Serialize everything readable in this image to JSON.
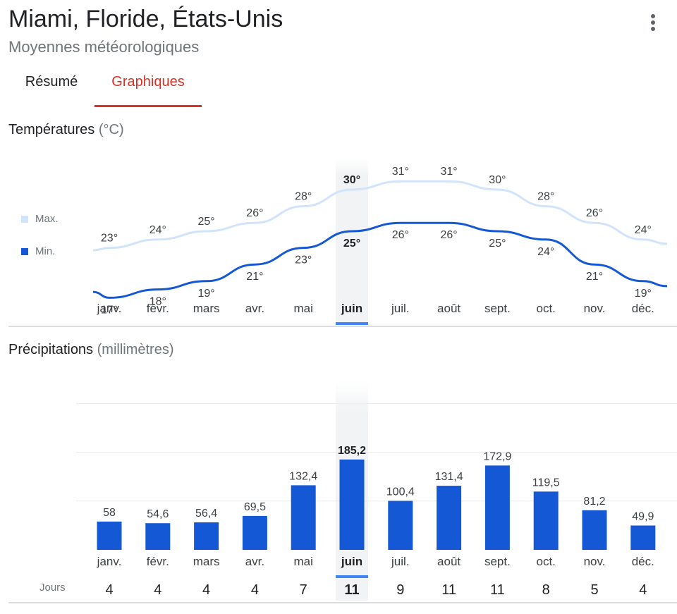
{
  "header": {
    "title": "Miami, Floride, États-Unis",
    "subtitle": "Moyennes météorologiques"
  },
  "menu": {
    "icon": "more-vert-icon"
  },
  "tabs": [
    {
      "label": "Résumé",
      "active": false
    },
    {
      "label": "Graphiques",
      "active": true
    }
  ],
  "colors": {
    "accent_red": "#d93025",
    "min_line": "#1558d6",
    "max_line": "#d2e3fc",
    "bar": "#1558d6",
    "highlight_band": "#f1f3f4",
    "highlight_marker": "#4285f4"
  },
  "selected_month_index": 5,
  "temperatures": {
    "title": "Températures",
    "unit": "(°C)",
    "legend_max": "Max.",
    "legend_min": "Min."
  },
  "precipitation": {
    "title": "Précipitations",
    "unit": "(millimètres)",
    "days_label": "Jours"
  },
  "chart_data": [
    {
      "type": "line",
      "title": "Températures (°C)",
      "categories": [
        "janv.",
        "févr.",
        "mars",
        "avr.",
        "mai",
        "juin",
        "juil.",
        "août",
        "sept.",
        "oct.",
        "nov.",
        "déc."
      ],
      "series": [
        {
          "name": "Max.",
          "values": [
            23,
            24,
            25,
            26,
            28,
            30,
            31,
            31,
            30,
            28,
            26,
            24
          ],
          "labels": [
            "23°",
            "24°",
            "25°",
            "26°",
            "28°",
            "30°",
            "31°",
            "31°",
            "30°",
            "28°",
            "26°",
            "24°"
          ]
        },
        {
          "name": "Min.",
          "values": [
            17,
            18,
            19,
            21,
            23,
            25,
            26,
            26,
            25,
            24,
            21,
            19
          ],
          "labels": [
            "17°",
            "18°",
            "19°",
            "21°",
            "23°",
            "25°",
            "26°",
            "26°",
            "25°",
            "24°",
            "21°",
            "19°"
          ]
        }
      ],
      "legend": "left",
      "grid": false
    },
    {
      "type": "bar",
      "title": "Précipitations (millimètres)",
      "categories": [
        "janv.",
        "févr.",
        "mars",
        "avr.",
        "mai",
        "juin",
        "juil.",
        "août",
        "sept.",
        "oct.",
        "nov.",
        "déc."
      ],
      "values": [
        58,
        54.6,
        56.4,
        69.5,
        132.4,
        185.2,
        100.4,
        131.4,
        172.9,
        119.5,
        81.2,
        49.9
      ],
      "labels": [
        "58",
        "54,6",
        "56,4",
        "69,5",
        "132,4",
        "185,2",
        "100,4",
        "131,4",
        "172,9",
        "119,5",
        "81,2",
        "49,9"
      ],
      "days": [
        "4",
        "4",
        "4",
        "4",
        "7",
        "11",
        "9",
        "11",
        "11",
        "8",
        "5",
        "4"
      ],
      "ylim": [
        0,
        300
      ],
      "grid": true
    }
  ]
}
